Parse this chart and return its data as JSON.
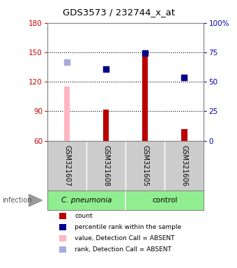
{
  "title": "GDS3573 / 232744_x_at",
  "samples": [
    "GSM321607",
    "GSM321608",
    "GSM321605",
    "GSM321606"
  ],
  "bar_values": [
    null,
    92,
    152,
    72
  ],
  "bar_absent_values": [
    115,
    null,
    null,
    null
  ],
  "dot_values": [
    null,
    133,
    149,
    124
  ],
  "dot_absent_values": [
    140,
    null,
    null,
    null
  ],
  "ylim_left": [
    60,
    180
  ],
  "ylim_right": [
    0,
    100
  ],
  "yticks_left": [
    60,
    90,
    120,
    150,
    180
  ],
  "yticks_right": [
    0,
    25,
    50,
    75,
    100
  ],
  "ylabel_left_color": "#CC0000",
  "ylabel_right_color": "#0000AA",
  "bar_color": "#BB0000",
  "bar_absent_color": "#FFB6C1",
  "dot_color": "#00008B",
  "dot_absent_color": "#AAAADD",
  "group_label_cp": "C. pneumonia",
  "group_label_ctrl": "control",
  "infection_label": "infection",
  "legend_items": [
    "count",
    "percentile rank within the sample",
    "value, Detection Call = ABSENT",
    "rank, Detection Call = ABSENT"
  ],
  "legend_colors": [
    "#BB0000",
    "#00008B",
    "#FFB6C1",
    "#AAAADD"
  ]
}
